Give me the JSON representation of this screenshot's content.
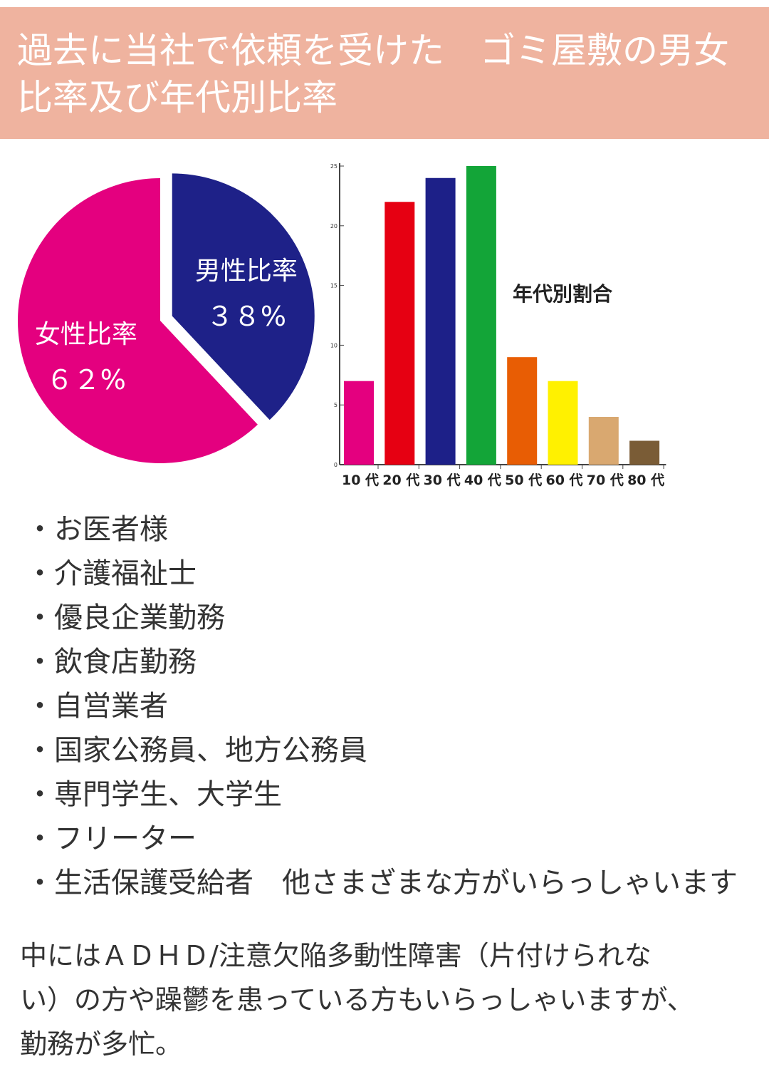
{
  "header": {
    "title_lines": [
      "過去に当社で依頼を受けた　ゴミ屋敷の男女",
      "比率及び年代別比率"
    ],
    "background": "#efb39f",
    "text_color": "#ffffff"
  },
  "chart_data": [
    {
      "type": "pie",
      "title": "",
      "slices": [
        {
          "label": "男性比率",
          "value_label": "３８%",
          "value": 38,
          "color": "#1e2188"
        },
        {
          "label": "女性比率",
          "value_label": "６２%",
          "value": 62,
          "color": "#e4007f"
        }
      ]
    },
    {
      "type": "bar",
      "title": "年代別割合",
      "categories": [
        "10 代",
        "20 代",
        "30 代",
        "40 代",
        "50 代",
        "60 代",
        "70 代",
        "80 代"
      ],
      "values": [
        7,
        22,
        24,
        25,
        9,
        7,
        4,
        2
      ],
      "colors": [
        "#e4007f",
        "#e60012",
        "#1d2088",
        "#13a538",
        "#e85d04",
        "#fff100",
        "#d9a870",
        "#7a5c36"
      ],
      "y_ticks": [
        0,
        5,
        10,
        15,
        20,
        25
      ],
      "ylim": [
        0,
        25
      ],
      "xlabel": "",
      "ylabel": ""
    }
  ],
  "occupations": [
    "お医者様",
    "介護福祉士",
    "優良企業勤務",
    "飲食店勤務",
    "自営業者",
    "国家公務員、地方公務員",
    "専門学生、大学生",
    "フリーター",
    "生活保護受給者　他さまざまな方がいらっしゃいます"
  ],
  "note_lines": [
    "中にはＡＤＨＤ/注意欠陥多動性障害（片付けられな",
    "い）の方や躁鬱を患っている方もいらっしゃいますが、",
    "勤務が多忙。"
  ]
}
